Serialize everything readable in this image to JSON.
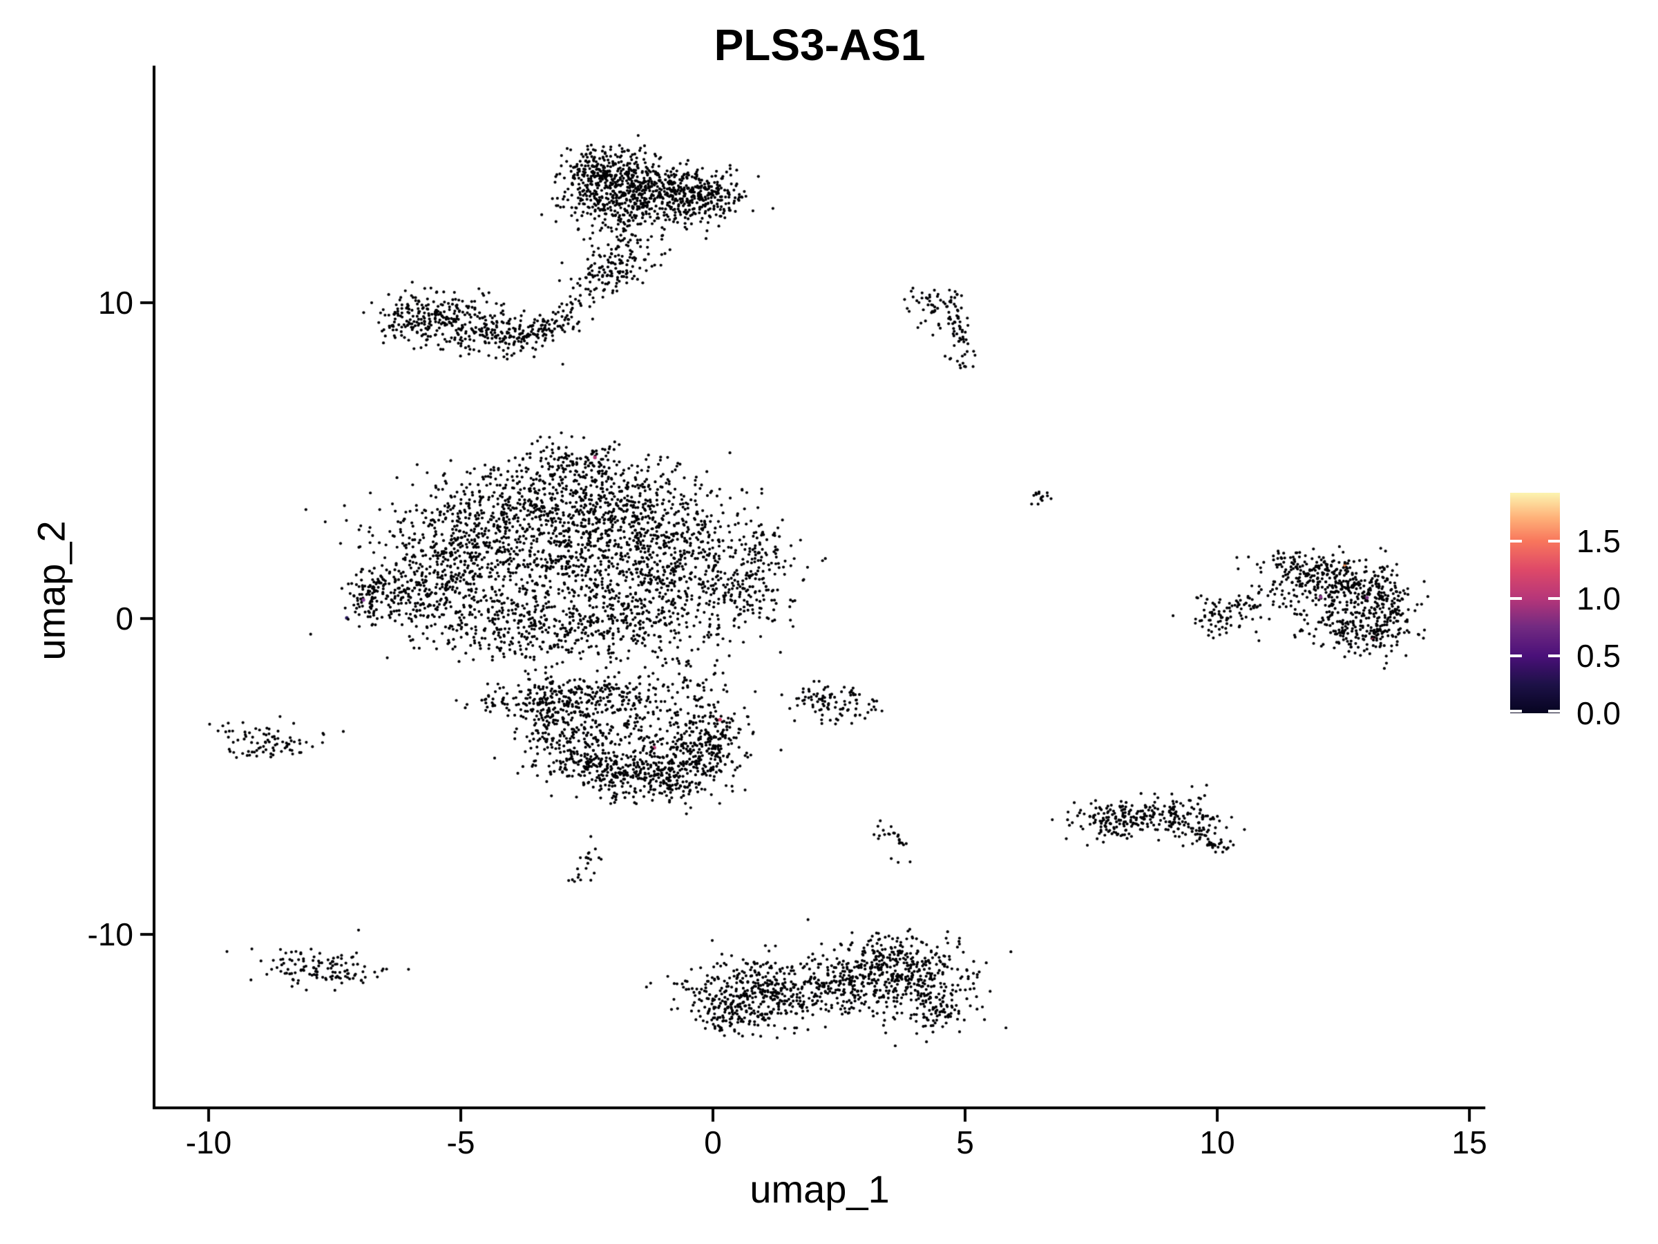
{
  "title": "PLS3-AS1",
  "chart_data": {
    "type": "scatter",
    "title": "PLS3-AS1",
    "xlabel": "umap_1",
    "ylabel": "umap_2",
    "grid": false,
    "background": "#ffffff",
    "point_color": "#000004",
    "point_radius_px": 2.1,
    "x_ticks": [
      -10,
      -5,
      0,
      5,
      10,
      15
    ],
    "x_tick_labels": [
      "-10",
      "-5",
      "0",
      "5",
      "10",
      "15"
    ],
    "y_ticks": [
      10,
      0,
      -10
    ],
    "y_tick_labels": [
      "10",
      "0",
      "-10"
    ],
    "x_range": [
      -11.1,
      15.3
    ],
    "y_range": [
      -15.5,
      17.5
    ],
    "legend": {
      "position": "right",
      "vmin": 0.0,
      "vmax": 1.92,
      "ticks": [
        1.5,
        1.0,
        0.5,
        0.0
      ],
      "tick_labels": [
        "1.5",
        "1.0",
        "0.5",
        "0.0"
      ],
      "gradient_stops_top_to_bottom": [
        {
          "pos": 0.0,
          "color": "#FCF4B0"
        },
        {
          "pos": 11.5,
          "color": "#FEB078"
        },
        {
          "pos": 21.9,
          "color": "#F8765C"
        },
        {
          "pos": 34.9,
          "color": "#DE4968"
        },
        {
          "pos": 47.9,
          "color": "#B63679"
        },
        {
          "pos": 60.9,
          "color": "#722A81"
        },
        {
          "pos": 74.0,
          "color": "#4A1079"
        },
        {
          "pos": 87.0,
          "color": "#1D1147"
        },
        {
          "pos": 100.0,
          "color": "#060420"
        }
      ]
    },
    "clusters": [
      {
        "name": "top-main-1",
        "type": "gauss",
        "cx": -2.05,
        "cy": 13.85,
        "sx": 0.5,
        "sy": 0.5,
        "n": 330
      },
      {
        "name": "top-main-2",
        "type": "gauss",
        "cx": -1.15,
        "cy": 13.6,
        "sx": 0.55,
        "sy": 0.45,
        "n": 280
      },
      {
        "name": "top-right-lobe",
        "type": "gauss",
        "cx": -0.1,
        "cy": 13.35,
        "sx": 0.38,
        "sy": 0.42,
        "n": 190
      },
      {
        "name": "top-bottom-fringe",
        "type": "gauss",
        "cx": -1.6,
        "cy": 12.85,
        "sx": 0.75,
        "sy": 0.3,
        "n": 130
      },
      {
        "name": "top-left-bump",
        "type": "gauss",
        "cx": -2.4,
        "cy": 14.3,
        "sx": 0.3,
        "sy": 0.3,
        "n": 60
      },
      {
        "name": "top-tail-1",
        "type": "line",
        "x1": -1.75,
        "y1": 12.45,
        "x2": -2.05,
        "y2": 11.3,
        "jitter": 0.28,
        "n": 55
      },
      {
        "name": "top-tail-clump",
        "type": "gauss",
        "cx": -2.0,
        "cy": 10.9,
        "sx": 0.38,
        "sy": 0.25,
        "n": 70
      },
      {
        "name": "top-tail-2",
        "type": "line",
        "x1": -2.3,
        "y1": 10.5,
        "x2": -3.2,
        "y2": 9.55,
        "jitter": 0.22,
        "n": 40
      },
      {
        "name": "top-tail-3",
        "type": "line",
        "x1": -1.2,
        "y1": 12.3,
        "x2": -1.5,
        "y2": 11.3,
        "jitter": 0.3,
        "n": 25
      },
      {
        "name": "arm-1",
        "type": "gauss",
        "cx": -5.55,
        "cy": 9.65,
        "sx": 0.5,
        "sy": 0.42,
        "n": 140
      },
      {
        "name": "arm-2",
        "type": "gauss",
        "cx": -4.85,
        "cy": 9.25,
        "sx": 0.6,
        "sy": 0.42,
        "n": 150
      },
      {
        "name": "arm-3",
        "type": "gauss",
        "cx": -4.05,
        "cy": 8.95,
        "sx": 0.5,
        "sy": 0.32,
        "n": 90
      },
      {
        "name": "arm-right-tail",
        "type": "line",
        "x1": -3.6,
        "y1": 8.95,
        "x2": -2.95,
        "y2": 9.45,
        "jitter": 0.2,
        "n": 55
      },
      {
        "name": "arm-left-tip",
        "type": "gauss",
        "cx": -6.0,
        "cy": 9.3,
        "sx": 0.3,
        "sy": 0.3,
        "n": 40
      },
      {
        "name": "hook-top",
        "type": "gauss",
        "cx": 4.45,
        "cy": 10.05,
        "sx": 0.3,
        "sy": 0.22,
        "n": 40
      },
      {
        "name": "hook-edge",
        "type": "line",
        "x1": 4.75,
        "y1": 9.85,
        "x2": 5.0,
        "y2": 8.35,
        "jitter": 0.13,
        "n": 45
      },
      {
        "name": "hook-tip",
        "type": "gauss",
        "cx": 4.95,
        "cy": 8.1,
        "sx": 0.14,
        "sy": 0.14,
        "n": 12
      },
      {
        "name": "hook-left-scatter",
        "type": "gauss",
        "cx": 4.3,
        "cy": 9.35,
        "sx": 0.18,
        "sy": 0.3,
        "n": 10
      },
      {
        "name": "central-1",
        "type": "gauss",
        "cx": -3.6,
        "cy": 3.6,
        "sx": 1.05,
        "sy": 0.75,
        "n": 480
      },
      {
        "name": "central-2",
        "type": "gauss",
        "cx": -1.7,
        "cy": 3.3,
        "sx": 0.95,
        "sy": 0.85,
        "n": 430
      },
      {
        "name": "central-3",
        "type": "gauss",
        "cx": -5.2,
        "cy": 2.2,
        "sx": 0.85,
        "sy": 0.8,
        "n": 360
      },
      {
        "name": "central-4",
        "type": "gauss",
        "cx": -3.0,
        "cy": 1.5,
        "sx": 1.15,
        "sy": 0.85,
        "n": 400
      },
      {
        "name": "central-5",
        "type": "gauss",
        "cx": -0.7,
        "cy": 1.7,
        "sx": 0.85,
        "sy": 0.95,
        "n": 360
      },
      {
        "name": "central-6",
        "type": "gauss",
        "cx": -5.8,
        "cy": 0.7,
        "sx": 0.7,
        "sy": 0.55,
        "n": 230
      },
      {
        "name": "central-7",
        "type": "gauss",
        "cx": -3.8,
        "cy": -0.4,
        "sx": 0.9,
        "sy": 0.5,
        "n": 250
      },
      {
        "name": "central-8",
        "type": "gauss",
        "cx": -1.8,
        "cy": -0.15,
        "sx": 0.8,
        "sy": 0.55,
        "n": 230
      },
      {
        "name": "central-9",
        "type": "gauss",
        "cx": 0.55,
        "cy": 0.6,
        "sx": 0.5,
        "sy": 0.8,
        "n": 130
      },
      {
        "name": "central-right-edge",
        "type": "gauss",
        "cx": 1.0,
        "cy": 2.2,
        "sx": 0.3,
        "sy": 0.75,
        "n": 80
      },
      {
        "name": "central-left-tip",
        "type": "gauss",
        "cx": -6.85,
        "cy": 0.7,
        "sx": 0.22,
        "sy": 0.45,
        "n": 70
      },
      {
        "name": "central-top-rim",
        "type": "gauss",
        "cx": -2.6,
        "cy": 5.0,
        "sx": 0.5,
        "sy": 0.3,
        "n": 90
      },
      {
        "name": "central-bridge",
        "type": "line",
        "x1": -0.7,
        "y1": -1.3,
        "x2": -0.1,
        "y2": -2.3,
        "jitter": 0.3,
        "n": 45
      },
      {
        "name": "bowl-1",
        "type": "gauss",
        "cx": -3.35,
        "cy": -2.6,
        "sx": 0.45,
        "sy": 0.45,
        "n": 140
      },
      {
        "name": "bowl-2",
        "type": "gauss",
        "cx": -2.95,
        "cy": -3.6,
        "sx": 0.42,
        "sy": 0.55,
        "n": 160
      },
      {
        "name": "bowl-3",
        "type": "gauss",
        "cx": -2.2,
        "cy": -4.6,
        "sx": 0.55,
        "sy": 0.42,
        "n": 190
      },
      {
        "name": "bowl-4",
        "type": "gauss",
        "cx": -1.2,
        "cy": -5.1,
        "sx": 0.6,
        "sy": 0.38,
        "n": 210
      },
      {
        "name": "bowl-5",
        "type": "gauss",
        "cx": -0.35,
        "cy": -4.3,
        "sx": 0.45,
        "sy": 0.55,
        "n": 210
      },
      {
        "name": "bowl-interior",
        "type": "gauss",
        "cx": -1.5,
        "cy": -3.3,
        "sx": 0.85,
        "sy": 0.75,
        "n": 170
      },
      {
        "name": "bowl-top-edge",
        "type": "gauss",
        "cx": -2.1,
        "cy": -2.4,
        "sx": 0.65,
        "sy": 0.35,
        "n": 110
      },
      {
        "name": "bowl-right-tip",
        "type": "gauss",
        "cx": 0.1,
        "cy": -3.4,
        "sx": 0.3,
        "sy": 0.4,
        "n": 70
      },
      {
        "name": "mini-left-of-bowl",
        "type": "gauss",
        "cx": -4.35,
        "cy": -2.7,
        "sx": 0.33,
        "sy": 0.12,
        "n": 24
      },
      {
        "name": "small-right-1",
        "type": "gauss",
        "cx": 2.35,
        "cy": -2.75,
        "sx": 0.45,
        "sy": 0.32,
        "n": 85
      },
      {
        "name": "small-right-1-tail",
        "type": "line",
        "x1": 1.75,
        "y1": -2.3,
        "x2": 2.1,
        "y2": -2.6,
        "jitter": 0.1,
        "n": 12
      },
      {
        "name": "comet",
        "type": "line",
        "x1": 3.35,
        "y1": -6.6,
        "x2": 3.72,
        "y2": -7.35,
        "jitter": 0.12,
        "n": 22
      },
      {
        "name": "comet-dot",
        "type": "gauss",
        "cx": 3.6,
        "cy": -7.6,
        "sx": 0.05,
        "sy": 0.05,
        "n": 2
      },
      {
        "name": "left-small",
        "type": "gauss",
        "cx": -8.85,
        "cy": -3.85,
        "sx": 0.55,
        "sy": 0.28,
        "n": 78
      },
      {
        "name": "left-small-edge",
        "type": "gauss",
        "cx": -9.3,
        "cy": -4.2,
        "sx": 0.15,
        "sy": 0.1,
        "n": 6
      },
      {
        "name": "left-small-outlier",
        "type": "gauss",
        "cx": -7.95,
        "cy": -4.1,
        "sx": 0.03,
        "sy": 0.03,
        "n": 1
      },
      {
        "name": "bottom-left",
        "type": "gauss",
        "cx": -7.9,
        "cy": -11.05,
        "sx": 0.6,
        "sy": 0.3,
        "n": 100
      },
      {
        "name": "bottom-left-2",
        "type": "gauss",
        "cx": -7.3,
        "cy": -11.3,
        "sx": 0.25,
        "sy": 0.2,
        "n": 20
      },
      {
        "name": "bottom-big-left",
        "type": "gauss",
        "cx": 0.85,
        "cy": -11.85,
        "sx": 0.8,
        "sy": 0.55,
        "n": 400
      },
      {
        "name": "bottom-big-bridge",
        "type": "gauss",
        "cx": 2.4,
        "cy": -11.6,
        "sx": 0.5,
        "sy": 0.42,
        "n": 150
      },
      {
        "name": "bottom-big-right",
        "type": "gauss",
        "cx": 3.8,
        "cy": -11.4,
        "sx": 0.7,
        "sy": 0.6,
        "n": 380
      },
      {
        "name": "bottom-big-top-bump",
        "type": "gauss",
        "cx": 3.4,
        "cy": -10.5,
        "sx": 0.45,
        "sy": 0.3,
        "n": 70
      },
      {
        "name": "bottom-big-br",
        "type": "gauss",
        "cx": 4.4,
        "cy": -12.5,
        "sx": 0.35,
        "sy": 0.35,
        "n": 60
      },
      {
        "name": "bottom-big-bl",
        "type": "gauss",
        "cx": 0.3,
        "cy": -12.6,
        "sx": 0.4,
        "sy": 0.3,
        "n": 60
      },
      {
        "name": "bottom-outlier-1",
        "type": "gauss",
        "cx": 1.9,
        "cy": -9.6,
        "sx": 0.04,
        "sy": 0.04,
        "n": 1
      },
      {
        "name": "bottom-outlier-2",
        "type": "gauss",
        "cx": 2.75,
        "cy": -9.95,
        "sx": 0.04,
        "sy": 0.04,
        "n": 1
      },
      {
        "name": "right-low-1",
        "type": "gauss",
        "cx": 7.85,
        "cy": -6.4,
        "sx": 0.42,
        "sy": 0.3,
        "n": 110
      },
      {
        "name": "right-low-2",
        "type": "gauss",
        "cx": 8.6,
        "cy": -6.2,
        "sx": 0.35,
        "sy": 0.25,
        "n": 60
      },
      {
        "name": "right-low-3",
        "type": "gauss",
        "cx": 9.3,
        "cy": -6.3,
        "sx": 0.42,
        "sy": 0.33,
        "n": 110
      },
      {
        "name": "right-low-tail",
        "type": "line",
        "x1": 9.6,
        "y1": -6.7,
        "x2": 10.0,
        "y2": -7.25,
        "jitter": 0.14,
        "n": 45
      },
      {
        "name": "right-mid-appendage",
        "type": "gauss",
        "cx": 10.1,
        "cy": 0.05,
        "sx": 0.28,
        "sy": 0.3,
        "n": 70
      },
      {
        "name": "right-mid-neck",
        "type": "line",
        "x1": 10.45,
        "y1": 0.35,
        "x2": 11.2,
        "y2": 0.95,
        "jitter": 0.16,
        "n": 30
      },
      {
        "name": "right-mid-top",
        "type": "gauss",
        "cx": 11.9,
        "cy": 1.4,
        "sx": 0.5,
        "sy": 0.3,
        "n": 120
      },
      {
        "name": "right-mid-2",
        "type": "gauss",
        "cx": 12.6,
        "cy": 1.15,
        "sx": 0.5,
        "sy": 0.35,
        "n": 130
      },
      {
        "name": "right-mid-edge",
        "type": "gauss",
        "cx": 13.3,
        "cy": 0.3,
        "sx": 0.35,
        "sy": 0.6,
        "n": 150
      },
      {
        "name": "right-mid-interior",
        "type": "gauss",
        "cx": 12.3,
        "cy": 0.3,
        "sx": 0.6,
        "sy": 0.5,
        "n": 120
      },
      {
        "name": "right-mid-bottom",
        "type": "gauss",
        "cx": 12.85,
        "cy": -0.5,
        "sx": 0.45,
        "sy": 0.35,
        "n": 110
      },
      {
        "name": "right-mid-tl-bump",
        "type": "gauss",
        "cx": 11.5,
        "cy": 1.85,
        "sx": 0.3,
        "sy": 0.2,
        "n": 40
      },
      {
        "name": "tiny-right",
        "type": "gauss",
        "cx": 6.45,
        "cy": 3.85,
        "sx": 0.13,
        "sy": 0.11,
        "n": 14
      },
      {
        "name": "streak-below-bowl",
        "type": "line",
        "x1": -2.7,
        "y1": -8.35,
        "x2": -2.33,
        "y2": -7.15,
        "jitter": 0.1,
        "n": 22
      }
    ],
    "highlight_points": [
      {
        "x": -2.34,
        "y": 5.1,
        "value": 1.0,
        "color": "#B5367A",
        "occluders": []
      },
      {
        "x": -6.93,
        "y": 0.59,
        "value": 0.7,
        "color": "#8A3E9E",
        "occluders": []
      },
      {
        "x": -7.26,
        "y": 0.02,
        "value": 0.2,
        "color": "#27165A",
        "occluders": [
          [
            2.0,
            2.0
          ]
        ]
      },
      {
        "x": 0.14,
        "y": -3.2,
        "value": 1.2,
        "color": "#D8406E",
        "occluders": []
      },
      {
        "x": -1.16,
        "y": -4.09,
        "value": 1.1,
        "color": "#C2407B",
        "occluders": [
          [
            -2.4,
            1.6
          ]
        ]
      },
      {
        "x": 12.05,
        "y": 0.68,
        "value": 0.8,
        "color": "#8B3A8F",
        "occluders": []
      },
      {
        "x": 12.97,
        "y": 0.66,
        "value": 0.75,
        "color": "#7C3285",
        "occluders": []
      },
      {
        "x": 12.53,
        "y": 1.66,
        "value": 1.6,
        "color": "#EB8B55",
        "occluders": [
          [
            -2.0,
            2.2
          ],
          [
            2.3,
            1.8
          ]
        ]
      },
      {
        "x": 13.09,
        "y": -0.63,
        "value": 1.2,
        "color": "#D8406E",
        "occluders": [
          [
            1.8,
            -1.8
          ],
          [
            -1.5,
            -2.2
          ],
          [
            0.5,
            2.4
          ]
        ]
      }
    ]
  }
}
